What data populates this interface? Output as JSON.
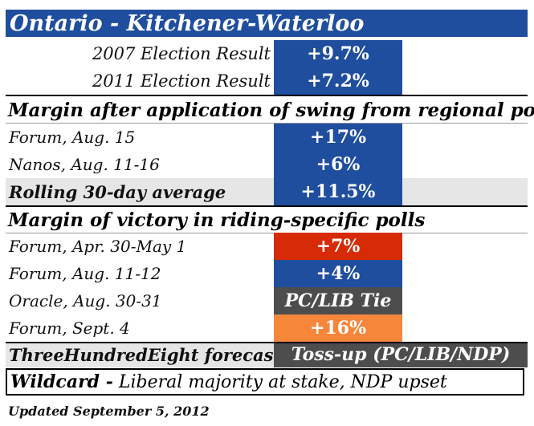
{
  "title": "Ontario - Kitchener-Waterloo",
  "election_results": [
    {
      "label": "2007 Election Result",
      "value": "+9.7%"
    },
    {
      "label": "2011 Election Result",
      "value": "+7.2%"
    }
  ],
  "regional_section": {
    "heading": "Margin after application of swing from regional polls",
    "polls": [
      {
        "label": "Forum, Aug. 15",
        "value": "+17%",
        "color": "#1f4e9e"
      },
      {
        "label": "Nanos, Aug. 11-16",
        "value": "+6%",
        "color": "#1f4e9e"
      }
    ],
    "rolling": {
      "label": "Rolling 30-day average",
      "value": "+11.5%"
    }
  },
  "riding_section": {
    "heading": "Margin of victory in riding-specific polls",
    "polls": [
      {
        "label": "Forum, Apr. 30-May 1",
        "value": "+7%",
        "color": "#d62b06"
      },
      {
        "label": "Forum, Aug. 11-12",
        "value": "+4%",
        "color": "#1f4e9e"
      },
      {
        "label": "Oracle, Aug. 30-31",
        "value": "PC/LIB Tie",
        "color": "#4d4d4d"
      },
      {
        "label": "Forum, Sept. 4",
        "value": "+16%",
        "color": "#f6863a"
      }
    ]
  },
  "forecast": {
    "label": "ThreeHundredEight forecast",
    "value": "Toss-up (PC/LIB/NDP)",
    "color": "#4d4d4d"
  },
  "wildcard": {
    "label": "Wildcard -",
    "text": " Liberal majority at stake, NDP upset"
  },
  "footer": "Updated September 5, 2012"
}
